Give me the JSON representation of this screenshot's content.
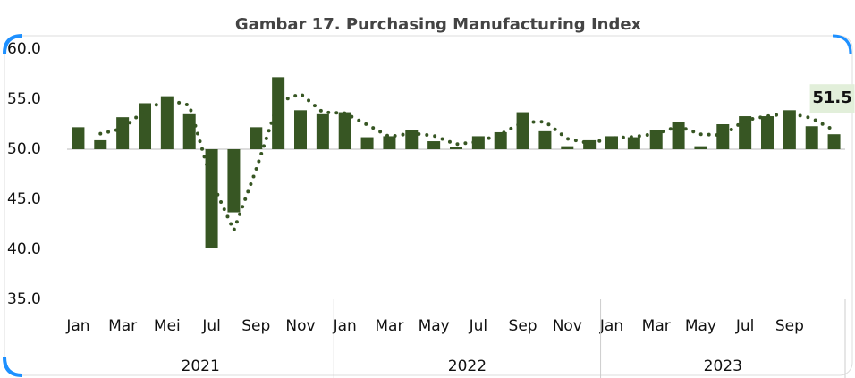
{
  "chart_data": {
    "type": "bar",
    "title": "Gambar 17. Purchasing Manufacturing Index",
    "categories": [
      "Jan",
      null,
      "Mar",
      null,
      "Mei",
      null,
      "Jul",
      null,
      "Sep",
      null,
      "Nov",
      null,
      "Jan",
      null,
      "Mar",
      null,
      "May",
      null,
      "Jul",
      null,
      "Sep",
      null,
      "Nov",
      null,
      "Jan",
      null,
      "Mar",
      null,
      "May",
      null,
      "Jul",
      null,
      "Sep",
      null,
      null
    ],
    "groups": [
      {
        "label": "2021",
        "count": 12
      },
      {
        "label": "2022",
        "count": 12
      },
      {
        "label": "2023",
        "count": 11
      }
    ],
    "values": [
      52.2,
      50.9,
      53.2,
      54.6,
      55.3,
      53.5,
      40.1,
      43.7,
      52.2,
      57.2,
      53.9,
      53.5,
      53.7,
      51.2,
      51.3,
      51.9,
      50.8,
      50.2,
      51.3,
      51.7,
      53.7,
      51.8,
      50.3,
      50.9,
      51.3,
      51.2,
      51.9,
      52.7,
      50.3,
      52.5,
      53.3,
      53.3,
      53.9,
      52.3,
      51.5
    ],
    "color": "#375623",
    "baseline": 50,
    "trend_values": [
      null,
      51.55,
      52.05,
      53.9,
      54.95,
      54.4,
      46.8,
      41.9,
      47.95,
      54.7,
      55.55,
      53.7,
      53.6,
      52.45,
      51.25,
      51.6,
      51.35,
      50.5,
      50.75,
      51.5,
      52.7,
      52.75,
      51.05,
      50.6,
      51.1,
      51.25,
      51.55,
      52.3,
      51.5,
      51.4,
      52.9,
      53.3,
      53.6,
      53.1,
      51.9
    ],
    "trend_color": "#375623",
    "data_labels": [
      34
    ],
    "ylim": [
      35,
      60
    ],
    "yticks": [
      {
        "value": 35,
        "label": "35.0"
      },
      {
        "value": 40,
        "label": "40.0"
      },
      {
        "value": 45,
        "label": "45.0"
      },
      {
        "value": 50,
        "label": "50.0"
      },
      {
        "value": 55,
        "label": "55.0"
      },
      {
        "value": 60,
        "label": "60.0"
      }
    ]
  }
}
